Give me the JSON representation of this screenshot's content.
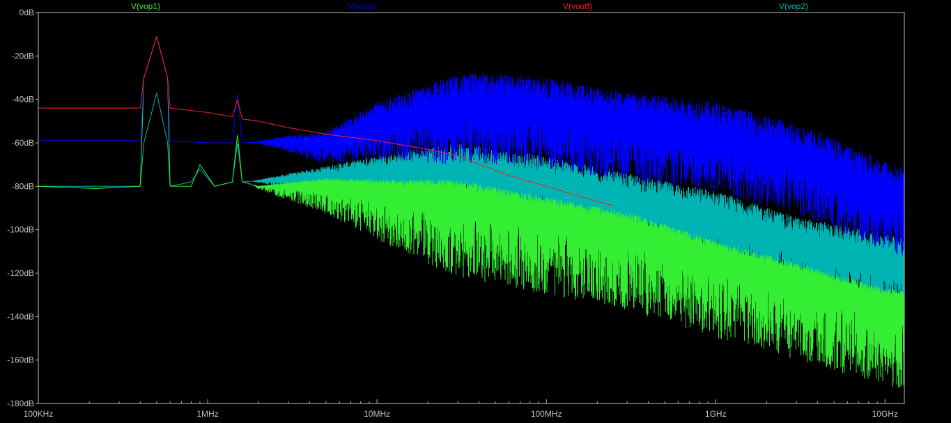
{
  "chart_data": {
    "type": "line",
    "title": "",
    "xlabel": "",
    "ylabel": "",
    "x_scale": "log",
    "x_unit": "Hz",
    "xlim": [
      100000,
      13000000000
    ],
    "ylim": [
      -180,
      0
    ],
    "grid": false,
    "legend_placement": "top",
    "background": "#000000",
    "axis_color": "#c0c0c0",
    "x_ticks": [
      {
        "value": 100000,
        "label": "100KHz"
      },
      {
        "value": 1000000,
        "label": "1MHz"
      },
      {
        "value": 10000000,
        "label": "10MHz"
      },
      {
        "value": 100000000,
        "label": "100MHz"
      },
      {
        "value": 1000000000,
        "label": "1GHz"
      },
      {
        "value": 10000000000,
        "label": "10GHz"
      }
    ],
    "y_ticks": [
      {
        "value": 0,
        "label": "0dB"
      },
      {
        "value": -20,
        "label": "-20dB"
      },
      {
        "value": -40,
        "label": "-40dB"
      },
      {
        "value": -60,
        "label": "-60dB"
      },
      {
        "value": -80,
        "label": "-80dB"
      },
      {
        "value": -100,
        "label": "-100dB"
      },
      {
        "value": -120,
        "label": "-120dB"
      },
      {
        "value": -140,
        "label": "-140dB"
      },
      {
        "value": -160,
        "label": "-160dB"
      },
      {
        "value": -180,
        "label": "-180dB"
      }
    ],
    "series": [
      {
        "name": "V(vop1)",
        "color": "#33ee33",
        "spread_db": [
          40,
          5
        ],
        "points": [
          [
            100000,
            -80
          ],
          [
            220000,
            -81
          ],
          [
            400000,
            -80
          ],
          [
            420000,
            -30
          ],
          [
            500000,
            -11
          ],
          [
            580000,
            -30
          ],
          [
            600000,
            -80
          ],
          [
            800000,
            -80
          ],
          [
            900000,
            -70
          ],
          [
            1100000,
            -80
          ],
          [
            1400000,
            -78
          ],
          [
            1500000,
            -56
          ],
          [
            1600000,
            -78
          ],
          [
            2000000,
            -80
          ],
          [
            5000000,
            -78
          ],
          [
            10000000,
            -80
          ],
          [
            30000000,
            -82
          ],
          [
            100000000,
            -90
          ],
          [
            300000000,
            -97
          ],
          [
            1000000000,
            -110
          ],
          [
            3000000000,
            -120
          ],
          [
            10000000000,
            -132
          ],
          [
            13000000000,
            -133
          ]
        ]
      },
      {
        "name": "V(vout)",
        "color": "#0000ff",
        "spread_db": [
          28,
          14
        ],
        "points": [
          [
            100000,
            -59
          ],
          [
            400000,
            -59
          ],
          [
            420000,
            -30
          ],
          [
            500000,
            -11
          ],
          [
            580000,
            -30
          ],
          [
            600000,
            -59
          ],
          [
            1000000,
            -60
          ],
          [
            1400000,
            -60
          ],
          [
            1500000,
            -37
          ],
          [
            1600000,
            -60
          ],
          [
            3000000,
            -59
          ],
          [
            5000000,
            -60
          ],
          [
            10000000,
            -50
          ],
          [
            30000000,
            -42
          ],
          [
            60000000,
            -42
          ],
          [
            100000000,
            -44
          ],
          [
            300000000,
            -50
          ],
          [
            1000000000,
            -55
          ],
          [
            3000000000,
            -65
          ],
          [
            10000000000,
            -82
          ],
          [
            13000000000,
            -86
          ]
        ]
      },
      {
        "name": "V(voutf)",
        "color": "#ff2020",
        "spread_db": [
          0,
          0
        ],
        "points": [
          [
            100000,
            -44
          ],
          [
            400000,
            -44
          ],
          [
            420000,
            -30
          ],
          [
            500000,
            -11
          ],
          [
            580000,
            -30
          ],
          [
            600000,
            -44
          ],
          [
            1000000,
            -46
          ],
          [
            1400000,
            -48
          ],
          [
            1500000,
            -40
          ],
          [
            1600000,
            -49
          ],
          [
            2000000,
            -50
          ],
          [
            3000000,
            -53
          ],
          [
            5000000,
            -56
          ],
          [
            10000000,
            -59
          ],
          [
            20000000,
            -63
          ],
          [
            30000000,
            -66
          ],
          [
            60000000,
            -75
          ],
          [
            100000000,
            -80
          ],
          [
            200000000,
            -87
          ],
          [
            250000000,
            -89
          ]
        ]
      },
      {
        "name": "V(vop2)",
        "color": "#00b4b4",
        "spread_db": [
          30,
          10
        ],
        "points": [
          [
            100000,
            -80
          ],
          [
            220000,
            -80
          ],
          [
            400000,
            -80
          ],
          [
            420000,
            -60
          ],
          [
            500000,
            -37
          ],
          [
            580000,
            -60
          ],
          [
            600000,
            -80
          ],
          [
            800000,
            -78
          ],
          [
            900000,
            -72
          ],
          [
            1100000,
            -80
          ],
          [
            1400000,
            -78
          ],
          [
            1500000,
            -60
          ],
          [
            1600000,
            -78
          ],
          [
            3000000,
            -76
          ],
          [
            10000000,
            -72
          ],
          [
            30000000,
            -70
          ],
          [
            100000000,
            -76
          ],
          [
            300000000,
            -84
          ],
          [
            1000000000,
            -92
          ],
          [
            3000000000,
            -104
          ],
          [
            10000000000,
            -112
          ],
          [
            13000000000,
            -113
          ]
        ]
      }
    ]
  }
}
